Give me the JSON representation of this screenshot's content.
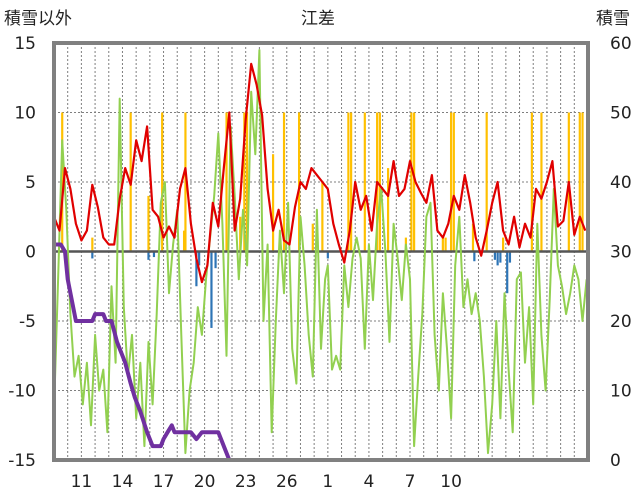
{
  "chart_data": {
    "type": "line",
    "title": "江差",
    "left_axis_label": "積雪以外",
    "right_axis_label": "積雪",
    "left_ylim": [
      -15,
      15
    ],
    "left_yticks": [
      15,
      10,
      5,
      0,
      -5,
      -10,
      -15
    ],
    "right_ylim": [
      0,
      60
    ],
    "right_yticks": [
      60,
      50,
      40,
      30,
      20,
      10,
      0
    ],
    "x_range": [
      0,
      39
    ],
    "x_ticks": [
      {
        "x": 2,
        "label": "11"
      },
      {
        "x": 5,
        "label": "14"
      },
      {
        "x": 8,
        "label": "17"
      },
      {
        "x": 11,
        "label": "20"
      },
      {
        "x": 14,
        "label": "23"
      },
      {
        "x": 17,
        "label": "26"
      },
      {
        "x": 20,
        "label": "1"
      },
      {
        "x": 23,
        "label": "4"
      },
      {
        "x": 26,
        "label": "7"
      },
      {
        "x": 29,
        "label": "10"
      }
    ],
    "grid": true,
    "colors": {
      "temperature": "#e00000",
      "wind": "#92d050",
      "snow_depth": "#7030a0",
      "precip_positive": "#ffc000",
      "precip_negative": "#2e75b6",
      "zero_line": "#555555",
      "frame": "#808080"
    },
    "series": [
      {
        "key": "temperature",
        "axis": "left",
        "points": [
          [
            0,
            2.5
          ],
          [
            0.4,
            1.5
          ],
          [
            0.8,
            6.0
          ],
          [
            1.2,
            4.5
          ],
          [
            1.6,
            2.0
          ],
          [
            2.0,
            0.8
          ],
          [
            2.4,
            1.5
          ],
          [
            2.8,
            4.8
          ],
          [
            3.2,
            3.2
          ],
          [
            3.6,
            1.0
          ],
          [
            4.0,
            0.5
          ],
          [
            4.4,
            0.5
          ],
          [
            4.8,
            3.8
          ],
          [
            5.2,
            6.0
          ],
          [
            5.6,
            4.8
          ],
          [
            6.0,
            8.0
          ],
          [
            6.4,
            6.5
          ],
          [
            6.8,
            9.0
          ],
          [
            7.2,
            3.0
          ],
          [
            7.6,
            2.5
          ],
          [
            8.0,
            1.0
          ],
          [
            8.4,
            1.8
          ],
          [
            8.8,
            1.0
          ],
          [
            9.2,
            4.5
          ],
          [
            9.6,
            6.0
          ],
          [
            10.0,
            2.0
          ],
          [
            10.4,
            -0.5
          ],
          [
            10.8,
            -2.2
          ],
          [
            11.2,
            -1.0
          ],
          [
            11.6,
            3.5
          ],
          [
            12.0,
            1.8
          ],
          [
            12.4,
            6.0
          ],
          [
            12.8,
            10.0
          ],
          [
            13.2,
            1.5
          ],
          [
            13.6,
            3.8
          ],
          [
            14.0,
            9.5
          ],
          [
            14.4,
            13.5
          ],
          [
            14.8,
            12.0
          ],
          [
            15.2,
            9.8
          ],
          [
            15.6,
            4.5
          ],
          [
            16.0,
            1.5
          ],
          [
            16.4,
            3.0
          ],
          [
            16.8,
            0.8
          ],
          [
            17.2,
            0.5
          ],
          [
            17.6,
            3.2
          ],
          [
            18.0,
            5.0
          ],
          [
            18.4,
            4.5
          ],
          [
            18.8,
            6.0
          ],
          [
            19.2,
            5.5
          ],
          [
            19.6,
            5.0
          ],
          [
            20.0,
            4.5
          ],
          [
            20.4,
            2.0
          ],
          [
            20.8,
            0.5
          ],
          [
            21.2,
            -0.8
          ],
          [
            21.6,
            1.5
          ],
          [
            22.0,
            5.0
          ],
          [
            22.4,
            3.0
          ],
          [
            22.8,
            4.0
          ],
          [
            23.2,
            1.5
          ],
          [
            23.6,
            5.0
          ],
          [
            24.0,
            4.5
          ],
          [
            24.4,
            4.0
          ],
          [
            24.8,
            6.5
          ],
          [
            25.2,
            4.0
          ],
          [
            25.6,
            4.5
          ],
          [
            26.0,
            6.5
          ],
          [
            26.4,
            5.0
          ],
          [
            26.8,
            4.2
          ],
          [
            27.2,
            3.5
          ],
          [
            27.6,
            5.5
          ],
          [
            28.0,
            1.5
          ],
          [
            28.4,
            1.0
          ],
          [
            28.8,
            2.0
          ],
          [
            29.2,
            4.0
          ],
          [
            29.6,
            3.0
          ],
          [
            30.0,
            5.5
          ],
          [
            30.4,
            3.5
          ],
          [
            30.8,
            1.0
          ],
          [
            31.2,
            -0.3
          ],
          [
            31.6,
            1.5
          ],
          [
            32.0,
            3.5
          ],
          [
            32.4,
            5.0
          ],
          [
            32.8,
            1.5
          ],
          [
            33.2,
            0.5
          ],
          [
            33.6,
            2.5
          ],
          [
            34.0,
            0.3
          ],
          [
            34.4,
            2.0
          ],
          [
            34.8,
            1.0
          ],
          [
            35.2,
            4.5
          ],
          [
            35.6,
            3.8
          ],
          [
            36.0,
            5.0
          ],
          [
            36.4,
            6.5
          ],
          [
            36.8,
            1.8
          ],
          [
            37.2,
            2.2
          ],
          [
            37.6,
            5.0
          ],
          [
            38.0,
            1.2
          ],
          [
            38.4,
            2.5
          ],
          [
            38.8,
            1.5
          ]
        ]
      },
      {
        "key": "wind",
        "axis": "left",
        "points": [
          [
            0,
            -11.5
          ],
          [
            0.3,
            -2.0
          ],
          [
            0.6,
            8.0
          ],
          [
            0.9,
            3.0
          ],
          [
            1.2,
            -4.5
          ],
          [
            1.5,
            -9.0
          ],
          [
            1.8,
            -7.5
          ],
          [
            2.1,
            -11.0
          ],
          [
            2.4,
            -8.0
          ],
          [
            2.7,
            -12.5
          ],
          [
            3.0,
            -6.0
          ],
          [
            3.3,
            -10.0
          ],
          [
            3.6,
            -8.5
          ],
          [
            3.9,
            -13.0
          ],
          [
            4.2,
            -2.5
          ],
          [
            4.5,
            -8.0
          ],
          [
            4.8,
            11.0
          ],
          [
            5.1,
            -4.0
          ],
          [
            5.4,
            -9.0
          ],
          [
            5.7,
            -6.0
          ],
          [
            6.0,
            -12.0
          ],
          [
            6.3,
            -8.0
          ],
          [
            6.6,
            -14.0
          ],
          [
            6.9,
            -6.5
          ],
          [
            7.2,
            -11.0
          ],
          [
            7.5,
            -4.5
          ],
          [
            7.8,
            3.5
          ],
          [
            8.1,
            5.0
          ],
          [
            8.4,
            -3.0
          ],
          [
            8.7,
            0.5
          ],
          [
            9.0,
            3.0
          ],
          [
            9.3,
            -6.0
          ],
          [
            9.6,
            -14.5
          ],
          [
            9.9,
            -10.0
          ],
          [
            10.2,
            -8.0
          ],
          [
            10.5,
            -4.0
          ],
          [
            10.8,
            -6.0
          ],
          [
            11.1,
            -2.0
          ],
          [
            11.4,
            1.0
          ],
          [
            11.7,
            4.0
          ],
          [
            12.0,
            8.5
          ],
          [
            12.3,
            2.0
          ],
          [
            12.6,
            -7.5
          ],
          [
            12.9,
            9.0
          ],
          [
            13.2,
            4.0
          ],
          [
            13.5,
            -2.0
          ],
          [
            13.8,
            3.0
          ],
          [
            14.1,
            -1.0
          ],
          [
            14.4,
            11.5
          ],
          [
            14.7,
            7.0
          ],
          [
            15.0,
            14.5
          ],
          [
            15.3,
            -5.0
          ],
          [
            15.6,
            0.5
          ],
          [
            15.9,
            -13.0
          ],
          [
            16.2,
            -5.0
          ],
          [
            16.5,
            1.5
          ],
          [
            16.8,
            -3.0
          ],
          [
            17.1,
            3.5
          ],
          [
            17.4,
            -7.0
          ],
          [
            17.7,
            -9.5
          ],
          [
            18.0,
            2.5
          ],
          [
            18.3,
            -1.0
          ],
          [
            18.6,
            -6.0
          ],
          [
            18.9,
            -9.0
          ],
          [
            19.2,
            3.0
          ],
          [
            19.5,
            -7.0
          ],
          [
            19.8,
            -2.0
          ],
          [
            20.0,
            -1.0
          ],
          [
            20.3,
            -8.5
          ],
          [
            20.6,
            -7.5
          ],
          [
            20.9,
            -8.5
          ],
          [
            21.2,
            -1.0
          ],
          [
            21.5,
            -4.0
          ],
          [
            21.8,
            -0.5
          ],
          [
            22.1,
            1.0
          ],
          [
            22.4,
            -0.5
          ],
          [
            22.7,
            -7.0
          ],
          [
            23.0,
            0.5
          ],
          [
            23.3,
            -3.5
          ],
          [
            23.6,
            2.0
          ],
          [
            23.9,
            4.5
          ],
          [
            24.2,
            0.0
          ],
          [
            24.5,
            -6.5
          ],
          [
            24.8,
            2.0
          ],
          [
            25.1,
            -0.5
          ],
          [
            25.4,
            -3.5
          ],
          [
            25.7,
            0.5
          ],
          [
            26.0,
            -2.0
          ],
          [
            26.3,
            -14.0
          ],
          [
            26.6,
            -9.0
          ],
          [
            26.9,
            -4.5
          ],
          [
            27.2,
            2.5
          ],
          [
            27.5,
            3.5
          ],
          [
            27.8,
            -6.0
          ],
          [
            28.1,
            -10.0
          ],
          [
            28.4,
            -3.0
          ],
          [
            28.7,
            -7.0
          ],
          [
            29.0,
            -12.0
          ],
          [
            29.3,
            -1.0
          ],
          [
            29.6,
            2.5
          ],
          [
            29.9,
            -4.0
          ],
          [
            30.2,
            -2.0
          ],
          [
            30.5,
            -4.5
          ],
          [
            30.8,
            -3.0
          ],
          [
            31.1,
            -5.0
          ],
          [
            31.4,
            -9.0
          ],
          [
            31.7,
            -14.5
          ],
          [
            32.0,
            -11.0
          ],
          [
            32.3,
            -5.0
          ],
          [
            32.6,
            -12.0
          ],
          [
            32.9,
            -3.0
          ],
          [
            33.2,
            -8.5
          ],
          [
            33.5,
            -13.0
          ],
          [
            33.8,
            -2.0
          ],
          [
            34.1,
            -1.5
          ],
          [
            34.4,
            -8.0
          ],
          [
            34.7,
            -4.0
          ],
          [
            35.0,
            -11.0
          ],
          [
            35.3,
            2.0
          ],
          [
            35.6,
            -6.0
          ],
          [
            35.9,
            -10.0
          ],
          [
            36.2,
            -3.5
          ],
          [
            36.5,
            4.5
          ],
          [
            36.8,
            -1.0
          ],
          [
            37.1,
            -2.5
          ],
          [
            37.4,
            -4.5
          ],
          [
            37.7,
            -3.0
          ],
          [
            38.0,
            -1.0
          ],
          [
            38.3,
            -2.0
          ],
          [
            38.6,
            -5.0
          ],
          [
            38.9,
            -2.0
          ]
        ]
      },
      {
        "key": "snow_depth",
        "axis": "right",
        "points": [
          [
            0,
            31
          ],
          [
            0.5,
            31
          ],
          [
            0.8,
            30
          ],
          [
            1.0,
            26
          ],
          [
            1.3,
            23
          ],
          [
            1.6,
            20
          ],
          [
            2.0,
            20
          ],
          [
            2.8,
            20
          ],
          [
            3.0,
            21
          ],
          [
            3.6,
            21
          ],
          [
            3.8,
            20
          ],
          [
            4.2,
            20
          ],
          [
            4.6,
            17
          ],
          [
            5.0,
            15
          ],
          [
            5.2,
            14
          ],
          [
            5.6,
            11
          ],
          [
            5.9,
            9
          ],
          [
            6.3,
            7
          ],
          [
            6.8,
            4
          ],
          [
            7.2,
            2
          ],
          [
            7.8,
            2
          ],
          [
            8.0,
            3
          ],
          [
            8.3,
            4
          ],
          [
            8.6,
            5
          ],
          [
            8.8,
            4
          ],
          [
            10.0,
            4
          ],
          [
            10.4,
            3
          ],
          [
            10.8,
            4
          ],
          [
            12.0,
            4
          ],
          [
            12.4,
            2
          ],
          [
            12.8,
            0
          ],
          [
            13.2,
            0
          ],
          [
            39,
            0
          ]
        ]
      }
    ],
    "precip": [
      {
        "x": 0.6,
        "v": 10
      },
      {
        "x": 2.8,
        "v": 1
      },
      {
        "x": 5.6,
        "v": 10
      },
      {
        "x": 6.9,
        "v": 4
      },
      {
        "x": 7.9,
        "v": 10
      },
      {
        "x": 9.5,
        "v": 1.5
      },
      {
        "x": 9.6,
        "v": 10
      },
      {
        "x": 12.6,
        "v": 10
      },
      {
        "x": 13.6,
        "v": 2.5
      },
      {
        "x": 13.9,
        "v": 10
      },
      {
        "x": 14.1,
        "v": 10
      },
      {
        "x": 16.0,
        "v": 7
      },
      {
        "x": 16.8,
        "v": 10
      },
      {
        "x": 17.9,
        "v": 10
      },
      {
        "x": 18.9,
        "v": 2
      },
      {
        "x": 19.6,
        "v": 5
      },
      {
        "x": 21.5,
        "v": 10
      },
      {
        "x": 21.7,
        "v": 10
      },
      {
        "x": 22.7,
        "v": 10
      },
      {
        "x": 23.6,
        "v": 10
      },
      {
        "x": 23.8,
        "v": 10
      },
      {
        "x": 24.4,
        "v": 6
      },
      {
        "x": 25.7,
        "v": 1
      },
      {
        "x": 26.1,
        "v": 10
      },
      {
        "x": 26.3,
        "v": 10
      },
      {
        "x": 28.4,
        "v": 1
      },
      {
        "x": 28.6,
        "v": 1
      },
      {
        "x": 29.0,
        "v": 10
      },
      {
        "x": 29.2,
        "v": 10
      },
      {
        "x": 30.6,
        "v": 2
      },
      {
        "x": 31.6,
        "v": 10
      },
      {
        "x": 32.8,
        "v": 1
      },
      {
        "x": 34.9,
        "v": 10
      },
      {
        "x": 35.6,
        "v": 10
      },
      {
        "x": 37.6,
        "v": 10
      },
      {
        "x": 38.4,
        "v": 10
      },
      {
        "x": 38.6,
        "v": 10
      },
      {
        "x": 2.8,
        "v": -0.5
      },
      {
        "x": 6.9,
        "v": -0.6
      },
      {
        "x": 7.3,
        "v": -0.4
      },
      {
        "x": 10.4,
        "v": -2.5
      },
      {
        "x": 10.6,
        "v": -1.0
      },
      {
        "x": 11.5,
        "v": -5.5
      },
      {
        "x": 11.8,
        "v": -1.2
      },
      {
        "x": 15.6,
        "v": -1.5
      },
      {
        "x": 20.0,
        "v": -0.5
      },
      {
        "x": 30.7,
        "v": -0.7
      },
      {
        "x": 32.2,
        "v": -0.6
      },
      {
        "x": 32.4,
        "v": -1.0
      },
      {
        "x": 32.6,
        "v": -0.8
      },
      {
        "x": 33.1,
        "v": -3.0
      },
      {
        "x": 33.3,
        "v": -0.8
      }
    ]
  }
}
